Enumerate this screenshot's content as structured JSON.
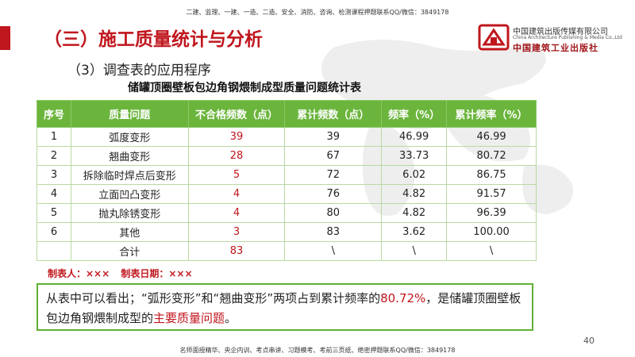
{
  "header_note": "二建、监理、一建、一造、二造、安全、消防、咨询、检测课程押题联系QQ/微信：3849178",
  "title": "（三）施工质量统计与分析",
  "publisher": {
    "name_cn": "中国建筑出版传媒有限公司",
    "name_en": "China Architecture Publishing & Media Co.,Ltd",
    "name_cn2": "中国建筑工业出版社"
  },
  "subtitle": "（3）调查表的应用程序",
  "table_title": "储罐顶圈壁板包边角钢煨制成型质量问题统计表",
  "table": {
    "headers": [
      "序号",
      "质量问题",
      "不合格频数（点）",
      "累计频数（点）",
      "频率（%）",
      "累计频率（%）"
    ],
    "rows": [
      [
        "1",
        "弧度变形",
        "39",
        "39",
        "46.99",
        "46.99"
      ],
      [
        "2",
        "翘曲变形",
        "28",
        "67",
        "33.73",
        "80.72"
      ],
      [
        "3",
        "拆除临时焊点后变形",
        "5",
        "72",
        "6.02",
        "86.75"
      ],
      [
        "4",
        "立面凹凸变形",
        "4",
        "76",
        "4.82",
        "91.57"
      ],
      [
        "5",
        "抛丸除锈变形",
        "4",
        "80",
        "4.82",
        "96.39"
      ],
      [
        "6",
        "其他",
        "3",
        "83",
        "3.62",
        "100.00"
      ]
    ],
    "total": [
      "",
      "合计",
      "83",
      "\\",
      "\\",
      "\\"
    ]
  },
  "maker": {
    "label": "制表人：×××",
    "date_label": "制表日期：×××"
  },
  "conclusion": {
    "p1": "从表中可以看出；“弧形变形”和“翘曲变形”两项占到累计频率的",
    "p2": "80.72%",
    "p3": "，是储罐顶圈壁板包边角钢煨制成型的",
    "p4": "主要质量问题",
    "p5": "。"
  },
  "page_number": "40",
  "footer_note": "名师面授精华、央企内训、考点串讲、习题模考、考前三页纸、绝密押题联系QQ/微信：3849178",
  "colors": {
    "accent_red": "#c0161d",
    "header_green": "#6bb53c",
    "box_green": "#5fb034"
  }
}
